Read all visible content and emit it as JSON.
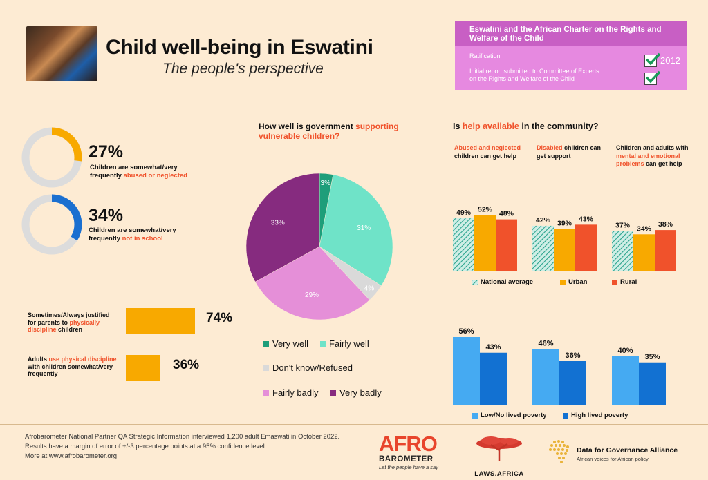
{
  "header": {
    "title": "Child well-being in Eswatini",
    "subtitle": "The people's perspective"
  },
  "charter": {
    "title_line1": "Eswatini and the African Charter on the Rights and",
    "title_line2": "Welfare of the Child",
    "ratification_label": "Ratification",
    "ratification_year": "2012",
    "report_line1": "Initial report submitted to Committee of Experts",
    "report_line2": "on the Rights and Welfare of the Child"
  },
  "stats": {
    "abused": {
      "value": 27,
      "label": "27%",
      "cap1": "Children are somewhat/very",
      "cap2a": "frequently ",
      "cap2b": "abused or neglected",
      "color": "#f8a900"
    },
    "school": {
      "value": 34,
      "label": "34%",
      "cap1": "Children are somewhat/very",
      "cap2a": "frequently ",
      "cap2b": "not in school",
      "color": "#1a6fd0"
    }
  },
  "discipline": {
    "justified": {
      "l1": "Sometimes/Always justified",
      "l2a": "for parents to ",
      "l2b": "physically",
      "l3a": "discipline",
      "l3b": " children",
      "value": 74,
      "label": "74%"
    },
    "use": {
      "l1a": "Adults ",
      "l1b": "use physical discipline",
      "l2": "with children somewhat/very",
      "l3": "frequently",
      "value": 36,
      "label": "36%"
    }
  },
  "pie": {
    "q1": "How well is government ",
    "q1b": "supporting",
    "q2": "vulnerable children?",
    "legend": {
      "very_well": "Very well",
      "fairly_well": "Fairly well",
      "dont_know": "Don't know/Refused",
      "fairly_badly": "Fairly badly",
      "very_badly": "Very badly"
    }
  },
  "help": {
    "q1": "Is ",
    "q1b": "help available",
    "q1c": " in the community?",
    "g1a": "Abused and neglected",
    "g1b": "children can get help",
    "g2a": "Disabled",
    "g2b": " children can",
    "g2c": "get support",
    "g3a": "Children and adults with",
    "g3b": "mental and emotional",
    "g3c": "problems",
    "g3d": " can get help",
    "legend_national": "National average",
    "legend_urban": "Urban",
    "legend_rural": "Rural",
    "legend_low": "Low/No lived poverty",
    "legend_high": "High lived poverty"
  },
  "chart_data": [
    {
      "type": "pie",
      "title": "How well is government supporting vulnerable children?",
      "slices": [
        {
          "name": "Very well",
          "value": 3,
          "label": "3%",
          "color": "#1e9e7a"
        },
        {
          "name": "Fairly well",
          "value": 31,
          "label": "31%",
          "color": "#6fe3c8"
        },
        {
          "name": "Don't know/Refused",
          "value": 4,
          "label": "4%",
          "color": "#d9d9d9"
        },
        {
          "name": "Fairly badly",
          "value": 29,
          "label": "29%",
          "color": "#e58fd8"
        },
        {
          "name": "Very badly",
          "value": 33,
          "label": "33%",
          "color": "#862b7f"
        }
      ]
    },
    {
      "type": "bar",
      "title": "Is help available in the community?",
      "categories": [
        "Abused and neglected children can get help",
        "Disabled children can get support",
        "Children and adults with mental and emotional problems can get help"
      ],
      "series": [
        {
          "name": "National average",
          "values": [
            49,
            42,
            37
          ],
          "labels": [
            "49%",
            "42%",
            "37%"
          ],
          "color": "#2ba38c"
        },
        {
          "name": "Urban",
          "values": [
            52,
            39,
            34
          ],
          "labels": [
            "52%",
            "39%",
            "34%"
          ],
          "color": "#f8a900"
        },
        {
          "name": "Rural",
          "values": [
            48,
            43,
            38
          ],
          "labels": [
            "48%",
            "43%",
            "38%"
          ],
          "color": "#f0522b"
        }
      ]
    },
    {
      "type": "bar",
      "categories": [
        "Abused and neglected children can get help",
        "Disabled children can get support",
        "Children and adults with mental and emotional problems can get help"
      ],
      "series": [
        {
          "name": "Low/No lived poverty",
          "values": [
            56,
            46,
            40
          ],
          "labels": [
            "56%",
            "46%",
            "40%"
          ],
          "color": "#45aaf2"
        },
        {
          "name": "High lived poverty",
          "values": [
            43,
            36,
            35
          ],
          "labels": [
            "43%",
            "36%",
            "35%"
          ],
          "color": "#1271d2"
        }
      ]
    }
  ],
  "footer": {
    "line1": "Afrobarometer National Partner QA Strategic Information interviewed 1,200 adult Emaswati in October 2022.",
    "line2": "Results have a margin of error of +/-3 percentage points at a 95% confidence level.",
    "line3": "More at www.afrobarometer.org",
    "afro_a": "AFR",
    "afro_b": "O",
    "afro_c": "BAROMETER",
    "afro_tag": "Let the people have a say",
    "laws": "LAWS.AFRICA",
    "dga_title": "Data for Governance Alliance",
    "dga_tag": "African voices for African policy"
  }
}
